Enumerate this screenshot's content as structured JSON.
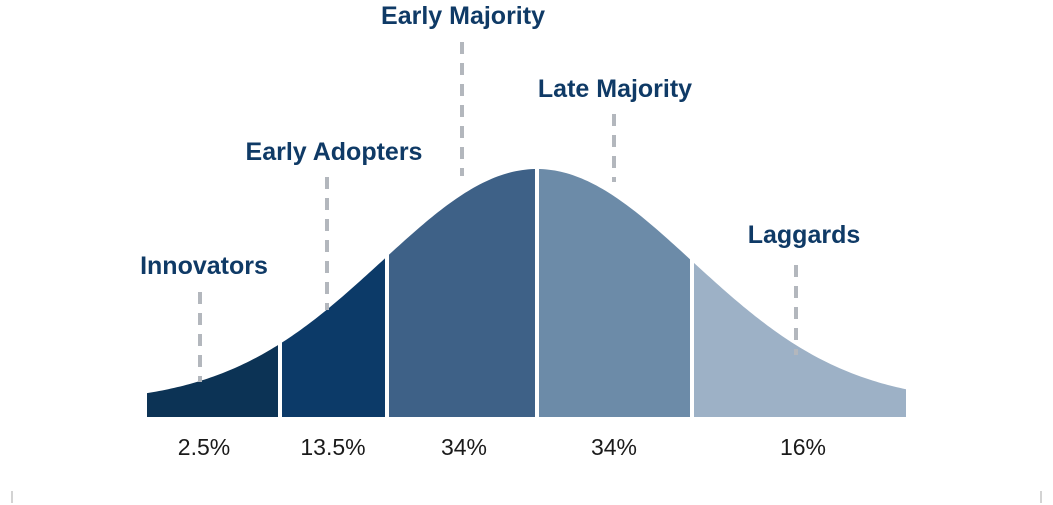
{
  "chart_data": {
    "type": "area",
    "segments": [
      {
        "label": "Innovators",
        "share": "2.5%",
        "color": "#0c3355"
      },
      {
        "label": "Early Adopters",
        "share": "13.5%",
        "color": "#0c3a68"
      },
      {
        "label": "Early Majority",
        "share": "34%",
        "color": "#3e6187"
      },
      {
        "label": "Late Majority",
        "share": "34%",
        "color": "#6c8ba8"
      },
      {
        "label": "Laggards",
        "share": "16%",
        "color": "#9db1c6"
      }
    ],
    "divider_color": "#ffffff",
    "leader_color": "#b3b7bd",
    "label_color": "#0f3a66"
  }
}
